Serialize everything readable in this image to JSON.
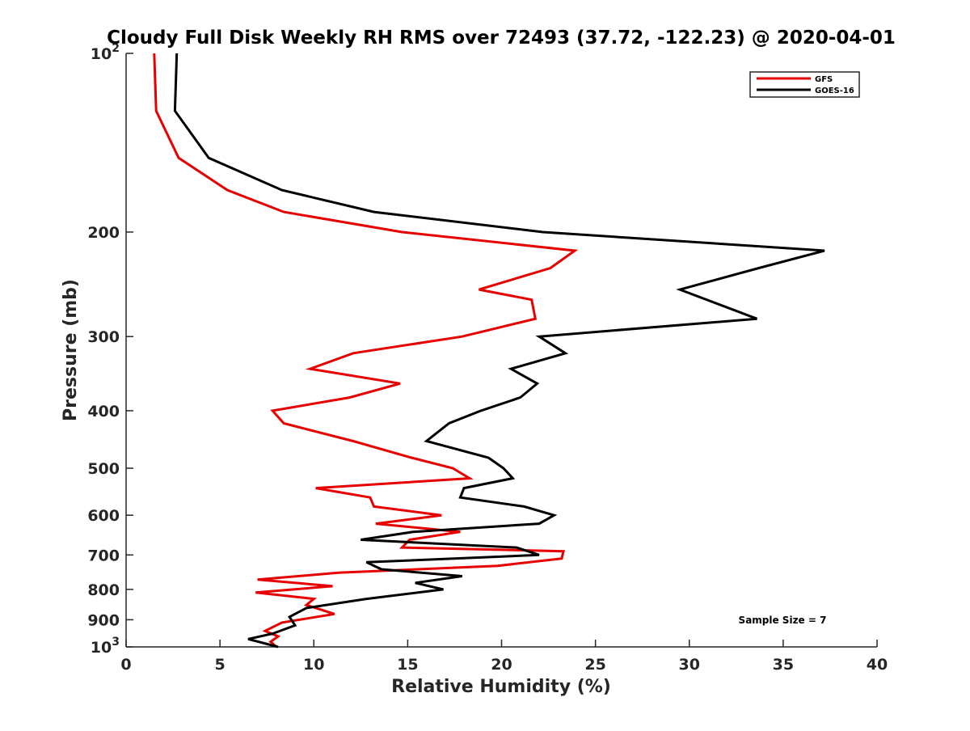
{
  "chart_data": {
    "type": "line",
    "title": "Cloudy Full Disk Weekly RH RMS over 72493 (37.72, -122.23) @ 2020-04-01",
    "xlabel": "Relative Humidity (%)",
    "ylabel": "Pressure (mb)",
    "xlim": [
      0,
      40
    ],
    "ylim": [
      100,
      1000
    ],
    "y_scale": "log",
    "y_reversed": true,
    "xticks": [
      0,
      5,
      10,
      15,
      20,
      25,
      30,
      35,
      40
    ],
    "xtick_labels": [
      "0",
      "5",
      "10",
      "15",
      "20",
      "25",
      "30",
      "35",
      "40"
    ],
    "yticks": [
      100,
      200,
      300,
      400,
      500,
      600,
      700,
      800,
      900,
      1000
    ],
    "ytick_labels": [
      {
        "base": "10",
        "exp": "2"
      },
      {
        "base": "200",
        "exp": ""
      },
      {
        "base": "300",
        "exp": ""
      },
      {
        "base": "400",
        "exp": ""
      },
      {
        "base": "500",
        "exp": ""
      },
      {
        "base": "600",
        "exp": ""
      },
      {
        "base": "700",
        "exp": ""
      },
      {
        "base": "800",
        "exp": ""
      },
      {
        "base": "900",
        "exp": ""
      },
      {
        "base": "10",
        "exp": "3"
      }
    ],
    "grid": false,
    "legend_position": "top-right",
    "annotation": "Sample Size = 7",
    "series": [
      {
        "name": "GFS",
        "color": "#e60000",
        "points": [
          [
            1.5,
            100
          ],
          [
            1.6,
            125
          ],
          [
            2.8,
            150
          ],
          [
            5.4,
            170
          ],
          [
            8.4,
            185
          ],
          [
            14.7,
            200
          ],
          [
            23.9,
            215
          ],
          [
            22.6,
            230
          ],
          [
            18.8,
            250
          ],
          [
            21.6,
            260
          ],
          [
            21.8,
            280
          ],
          [
            17.9,
            300
          ],
          [
            12.1,
            320
          ],
          [
            9.8,
            340
          ],
          [
            14.6,
            360
          ],
          [
            11.9,
            380
          ],
          [
            7.8,
            400
          ],
          [
            8.4,
            420
          ],
          [
            12.1,
            450
          ],
          [
            15.2,
            480
          ],
          [
            17.4,
            500
          ],
          [
            18.3,
            520
          ],
          [
            10.1,
            540
          ],
          [
            13.0,
            560
          ],
          [
            13.2,
            580
          ],
          [
            16.8,
            600
          ],
          [
            13.3,
            620
          ],
          [
            17.8,
            640
          ],
          [
            15.1,
            660
          ],
          [
            14.7,
            680
          ],
          [
            23.3,
            690
          ],
          [
            23.2,
            710
          ],
          [
            19.8,
            730
          ],
          [
            11.3,
            750
          ],
          [
            7.0,
            770
          ],
          [
            11.0,
            790
          ],
          [
            6.9,
            810
          ],
          [
            10.0,
            830
          ],
          [
            9.6,
            850
          ],
          [
            11.1,
            880
          ],
          [
            8.3,
            910
          ],
          [
            7.4,
            940
          ],
          [
            8.1,
            960
          ],
          [
            7.7,
            980
          ],
          [
            8.0,
            1000
          ]
        ]
      },
      {
        "name": "GOES-16",
        "color": "#000000",
        "points": [
          [
            2.7,
            100
          ],
          [
            2.6,
            125
          ],
          [
            4.4,
            150
          ],
          [
            8.3,
            170
          ],
          [
            13.2,
            185
          ],
          [
            22.2,
            200
          ],
          [
            37.2,
            215
          ],
          [
            33.7,
            230
          ],
          [
            29.5,
            250
          ],
          [
            33.6,
            280
          ],
          [
            22.0,
            300
          ],
          [
            23.4,
            320
          ],
          [
            20.5,
            340
          ],
          [
            21.9,
            360
          ],
          [
            21.0,
            380
          ],
          [
            18.9,
            400
          ],
          [
            17.2,
            420
          ],
          [
            16.0,
            450
          ],
          [
            19.3,
            480
          ],
          [
            20.1,
            500
          ],
          [
            20.6,
            520
          ],
          [
            18.0,
            540
          ],
          [
            17.8,
            560
          ],
          [
            21.2,
            580
          ],
          [
            22.8,
            600
          ],
          [
            22.0,
            620
          ],
          [
            15.3,
            640
          ],
          [
            12.5,
            660
          ],
          [
            20.8,
            680
          ],
          [
            22.0,
            700
          ],
          [
            12.8,
            720
          ],
          [
            13.6,
            740
          ],
          [
            17.9,
            760
          ],
          [
            15.4,
            780
          ],
          [
            16.9,
            800
          ],
          [
            12.8,
            830
          ],
          [
            9.6,
            860
          ],
          [
            8.7,
            890
          ],
          [
            9.0,
            920
          ],
          [
            7.8,
            950
          ],
          [
            6.5,
            970
          ],
          [
            8.1,
            1000
          ]
        ]
      }
    ]
  }
}
